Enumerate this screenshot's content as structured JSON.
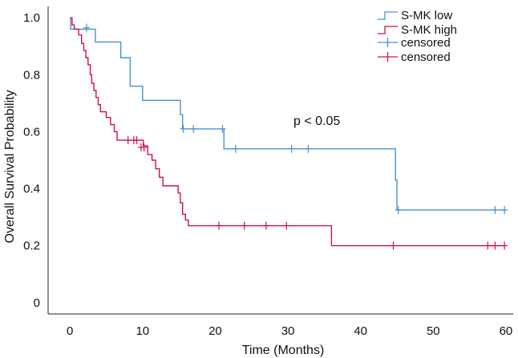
{
  "chart_data": {
    "type": "line",
    "title": "",
    "xlabel": "Time (Months)",
    "ylabel": "Overall Survival Probability",
    "xlim": [
      -3,
      61
    ],
    "ylim": [
      -0.04,
      1.04
    ],
    "x_ticks": [
      0,
      10,
      20,
      30,
      40,
      50,
      60
    ],
    "y_ticks": [
      0,
      0.2,
      0.4,
      0.6,
      0.8,
      1.0
    ],
    "y_tick_labels": [
      "0",
      "0.2",
      "0.4",
      "0.6",
      "0.8",
      "1.0"
    ],
    "grid": false,
    "legend_position": "top-right",
    "annotation": "p < 0.05",
    "series": [
      {
        "name": "S-MK low",
        "censored_label": "censored",
        "color": "#4a90d9",
        "steps": [
          [
            0,
            1.0
          ],
          [
            0.1,
            0.96
          ],
          [
            3.5,
            0.915
          ],
          [
            7,
            0.86
          ],
          [
            8.3,
            0.76
          ],
          [
            10,
            0.71
          ],
          [
            15.2,
            0.66
          ],
          [
            15.5,
            0.61
          ],
          [
            21.2,
            0.54
          ],
          [
            44.8,
            0.43
          ],
          [
            45,
            0.325
          ],
          [
            60,
            0.325
          ]
        ],
        "censored": [
          [
            2.3,
            0.965
          ],
          [
            15.6,
            0.61
          ],
          [
            17,
            0.61
          ],
          [
            21,
            0.61
          ],
          [
            22.8,
            0.54
          ],
          [
            30.5,
            0.54
          ],
          [
            32.8,
            0.54
          ],
          [
            45.2,
            0.325
          ],
          [
            58.5,
            0.325
          ],
          [
            59.8,
            0.325
          ]
        ]
      },
      {
        "name": "S-MK high",
        "censored_label": "censored",
        "color": "#d0104c",
        "steps": [
          [
            0,
            1.0
          ],
          [
            0.3,
            0.975
          ],
          [
            0.6,
            0.96
          ],
          [
            1.2,
            0.94
          ],
          [
            1.6,
            0.91
          ],
          [
            1.9,
            0.885
          ],
          [
            2.2,
            0.86
          ],
          [
            2.5,
            0.835
          ],
          [
            2.8,
            0.8
          ],
          [
            3,
            0.77
          ],
          [
            3.3,
            0.745
          ],
          [
            3.6,
            0.72
          ],
          [
            3.9,
            0.695
          ],
          [
            4.2,
            0.67
          ],
          [
            5,
            0.65
          ],
          [
            5.6,
            0.625
          ],
          [
            6.1,
            0.6
          ],
          [
            6.5,
            0.57
          ],
          [
            10.1,
            0.55
          ],
          [
            10.7,
            0.52
          ],
          [
            11.3,
            0.5
          ],
          [
            11.8,
            0.47
          ],
          [
            12.3,
            0.44
          ],
          [
            12.8,
            0.41
          ],
          [
            14.9,
            0.385
          ],
          [
            15.2,
            0.35
          ],
          [
            15.5,
            0.31
          ],
          [
            15.9,
            0.29
          ],
          [
            16.3,
            0.27
          ],
          [
            36,
            0.2
          ],
          [
            60,
            0.2
          ]
        ],
        "censored": [
          [
            8,
            0.57
          ],
          [
            8.8,
            0.57
          ],
          [
            9.2,
            0.57
          ],
          [
            9.8,
            0.545
          ],
          [
            10.2,
            0.545
          ],
          [
            20.5,
            0.27
          ],
          [
            24,
            0.27
          ],
          [
            27,
            0.27
          ],
          [
            29.8,
            0.27
          ],
          [
            44.5,
            0.2
          ],
          [
            57.5,
            0.2
          ],
          [
            58.5,
            0.2
          ],
          [
            59.8,
            0.2
          ]
        ]
      }
    ]
  }
}
